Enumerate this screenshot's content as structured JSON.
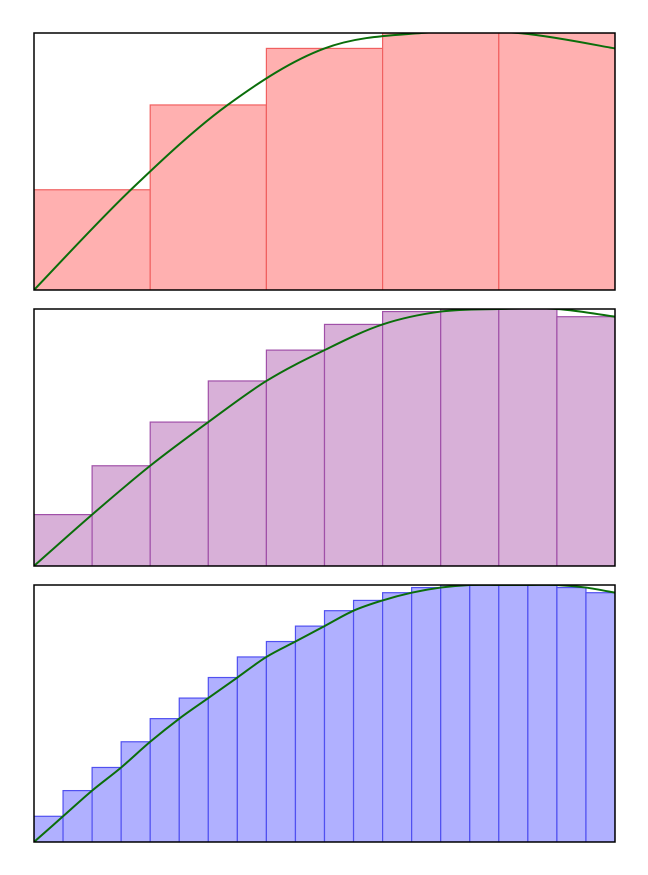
{
  "chart_data": [
    {
      "type": "bar",
      "x_range": [
        0,
        5
      ],
      "ylim": [
        0,
        1
      ],
      "grid": false,
      "n_rects": 5,
      "values": [
        0.39,
        0.72,
        0.94,
        1.0,
        1.0
      ],
      "curve": {
        "values": [
          0.0,
          0.39,
          0.72,
          0.94,
          1.0,
          1.0,
          0.94
        ]
      },
      "fill_color": "#ffb0b0",
      "edge_color": "#f06060"
    },
    {
      "type": "bar",
      "x_range": [
        0,
        5
      ],
      "ylim": [
        0,
        1
      ],
      "grid": false,
      "n_rects": 10,
      "values": [
        0.2,
        0.39,
        0.56,
        0.72,
        0.84,
        0.94,
        0.99,
        1.0,
        1.0,
        0.97
      ],
      "curve": {
        "values": [
          0.0,
          0.2,
          0.39,
          0.56,
          0.72,
          0.84,
          0.94,
          0.99,
          1.0,
          1.0,
          0.97
        ]
      },
      "fill_color": "#d8b0d8",
      "edge_color": "#a050a8"
    },
    {
      "type": "bar",
      "x_range": [
        0,
        5
      ],
      "ylim": [
        0,
        1
      ],
      "grid": false,
      "n_rects": 20,
      "values": [
        0.1,
        0.2,
        0.29,
        0.39,
        0.48,
        0.56,
        0.64,
        0.72,
        0.78,
        0.84,
        0.9,
        0.94,
        0.97,
        0.99,
        1.0,
        1.0,
        1.0,
        1.0,
        0.99,
        0.97
      ],
      "curve": {
        "values": [
          0.0,
          0.1,
          0.2,
          0.29,
          0.39,
          0.48,
          0.56,
          0.64,
          0.72,
          0.78,
          0.84,
          0.9,
          0.94,
          0.97,
          0.99,
          1.0,
          1.0,
          1.0,
          1.0,
          0.99,
          0.97
        ]
      },
      "fill_color": "#b0b0ff",
      "edge_color": "#5050f0"
    }
  ],
  "curve_color": "#0a6e0a",
  "frame_color": "#000000"
}
